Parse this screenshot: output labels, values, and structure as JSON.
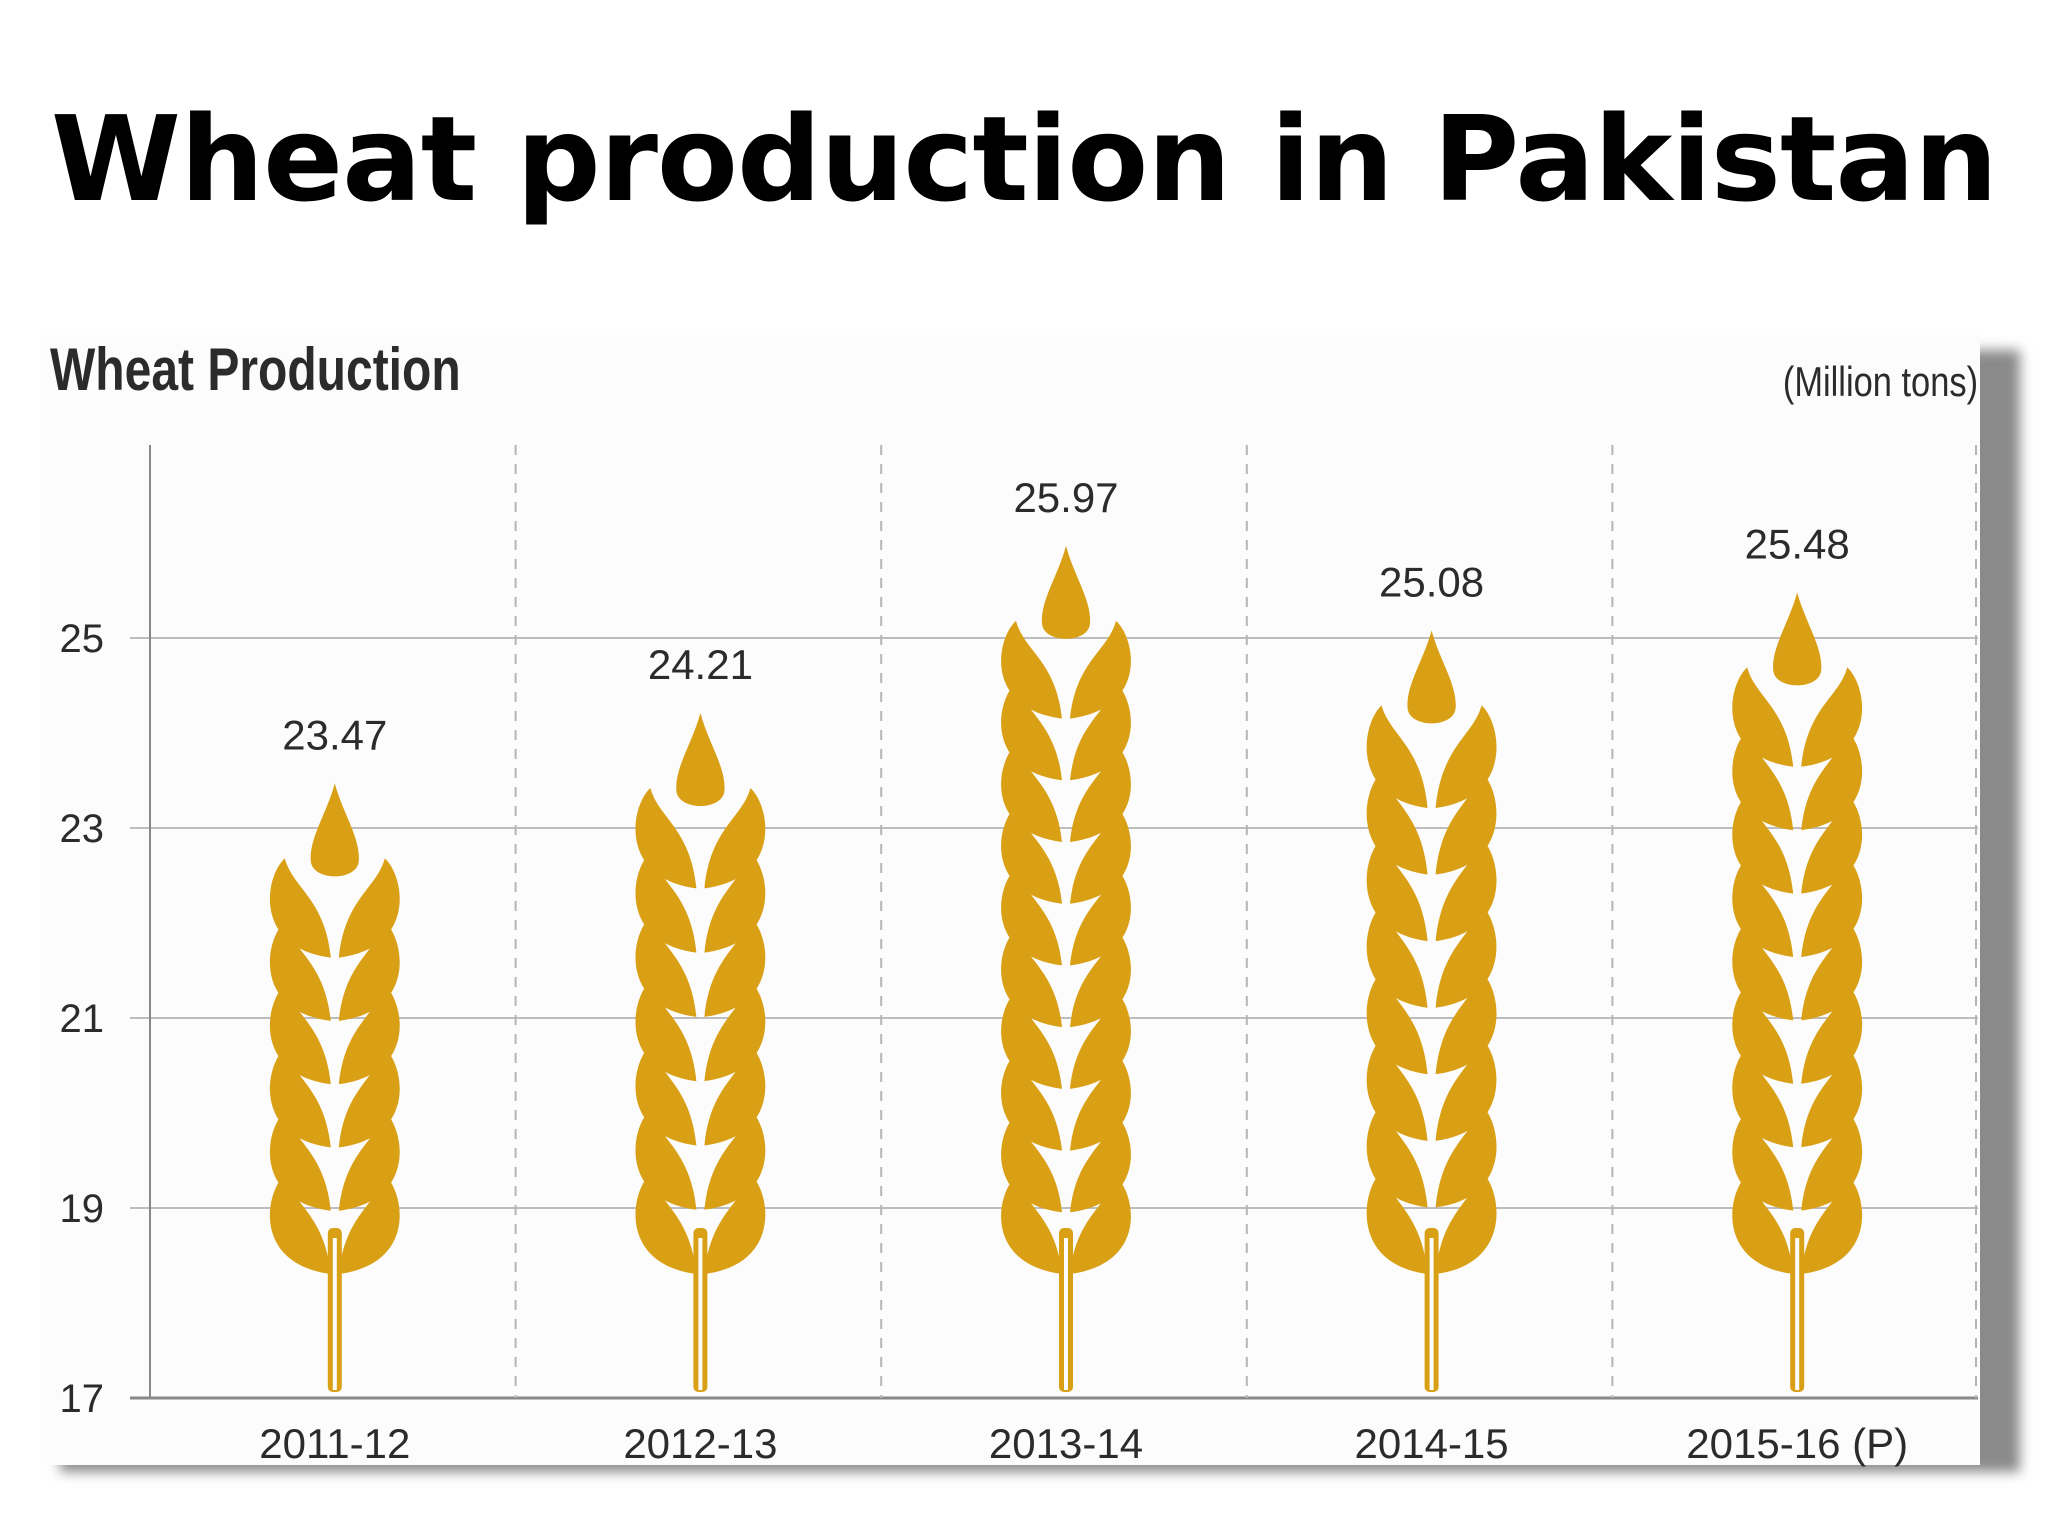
{
  "slide": {
    "title": "Wheat production in Pakistan"
  },
  "chart_data": {
    "type": "bar",
    "title": "Wheat Production",
    "unit_label": "(Million tons)",
    "categories": [
      "2011-12",
      "2012-13",
      "2013-14",
      "2014-15",
      "2015-16 (P)"
    ],
    "values": [
      23.47,
      24.21,
      25.97,
      25.08,
      25.48
    ],
    "data_labels": [
      "23.47",
      "24.21",
      "25.97",
      "25.08",
      "25.48"
    ],
    "y_ticks": [
      "17",
      "19",
      "21",
      "23",
      "25"
    ],
    "ylim": [
      17,
      27
    ],
    "xlabel": "",
    "ylabel": "",
    "grid": true,
    "mark_style": "wheat-stalk-icon",
    "colors": {
      "wheat": "#D9A016",
      "grid": "#bdbdbd",
      "text": "#2b2b2b"
    }
  }
}
